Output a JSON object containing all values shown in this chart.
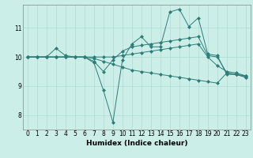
{
  "xlabel": "Humidex (Indice chaleur)",
  "bg_color": "#cceee8",
  "line_color": "#2d7d78",
  "grid_color": "#aaddd6",
  "xlim": [
    -0.5,
    23.5
  ],
  "ylim": [
    7.5,
    11.8
  ],
  "yticks": [
    8,
    9,
    10,
    11
  ],
  "xticks": [
    0,
    1,
    2,
    3,
    4,
    5,
    6,
    7,
    8,
    9,
    10,
    11,
    12,
    13,
    14,
    15,
    16,
    17,
    18,
    19,
    20,
    21,
    22,
    23
  ],
  "series": [
    {
      "x": [
        0,
        1,
        2,
        3,
        4,
        5,
        6,
        7,
        8,
        9,
        10,
        11,
        12,
        13,
        14,
        15,
        16,
        17,
        18,
        19,
        20,
        21,
        22,
        23
      ],
      "y": [
        10.0,
        10.0,
        10.0,
        10.3,
        10.05,
        10.0,
        10.0,
        9.8,
        8.85,
        7.75,
        9.9,
        10.45,
        10.7,
        10.35,
        10.35,
        11.55,
        11.65,
        11.05,
        11.35,
        10.1,
        10.05,
        9.4,
        9.4,
        9.3
      ]
    },
    {
      "x": [
        0,
        1,
        2,
        3,
        4,
        5,
        6,
        7,
        8,
        9,
        10,
        11,
        12,
        13,
        14,
        15,
        16,
        17,
        18,
        19,
        20,
        21,
        22,
        23
      ],
      "y": [
        10.0,
        10.0,
        10.0,
        10.0,
        10.0,
        10.0,
        10.0,
        9.85,
        9.5,
        9.9,
        10.2,
        10.35,
        10.4,
        10.45,
        10.5,
        10.55,
        10.6,
        10.65,
        10.7,
        10.05,
        10.0,
        9.45,
        9.4,
        9.35
      ]
    },
    {
      "x": [
        0,
        1,
        2,
        3,
        4,
        5,
        6,
        7,
        8,
        9,
        10,
        11,
        12,
        13,
        14,
        15,
        16,
        17,
        18,
        19,
        20,
        21,
        22,
        23
      ],
      "y": [
        10.0,
        10.0,
        10.0,
        10.0,
        10.0,
        10.0,
        10.0,
        10.0,
        10.0,
        10.0,
        10.05,
        10.1,
        10.15,
        10.2,
        10.25,
        10.3,
        10.35,
        10.4,
        10.45,
        10.0,
        9.7,
        9.5,
        9.45,
        9.35
      ]
    },
    {
      "x": [
        0,
        1,
        2,
        3,
        4,
        5,
        6,
        7,
        8,
        9,
        10,
        11,
        12,
        13,
        14,
        15,
        16,
        17,
        18,
        19,
        20,
        21,
        22,
        23
      ],
      "y": [
        10.0,
        10.0,
        10.0,
        10.0,
        10.0,
        10.0,
        10.0,
        9.95,
        9.85,
        9.75,
        9.65,
        9.55,
        9.5,
        9.45,
        9.4,
        9.35,
        9.3,
        9.25,
        9.2,
        9.15,
        9.1,
        9.45,
        9.4,
        9.3
      ]
    }
  ]
}
